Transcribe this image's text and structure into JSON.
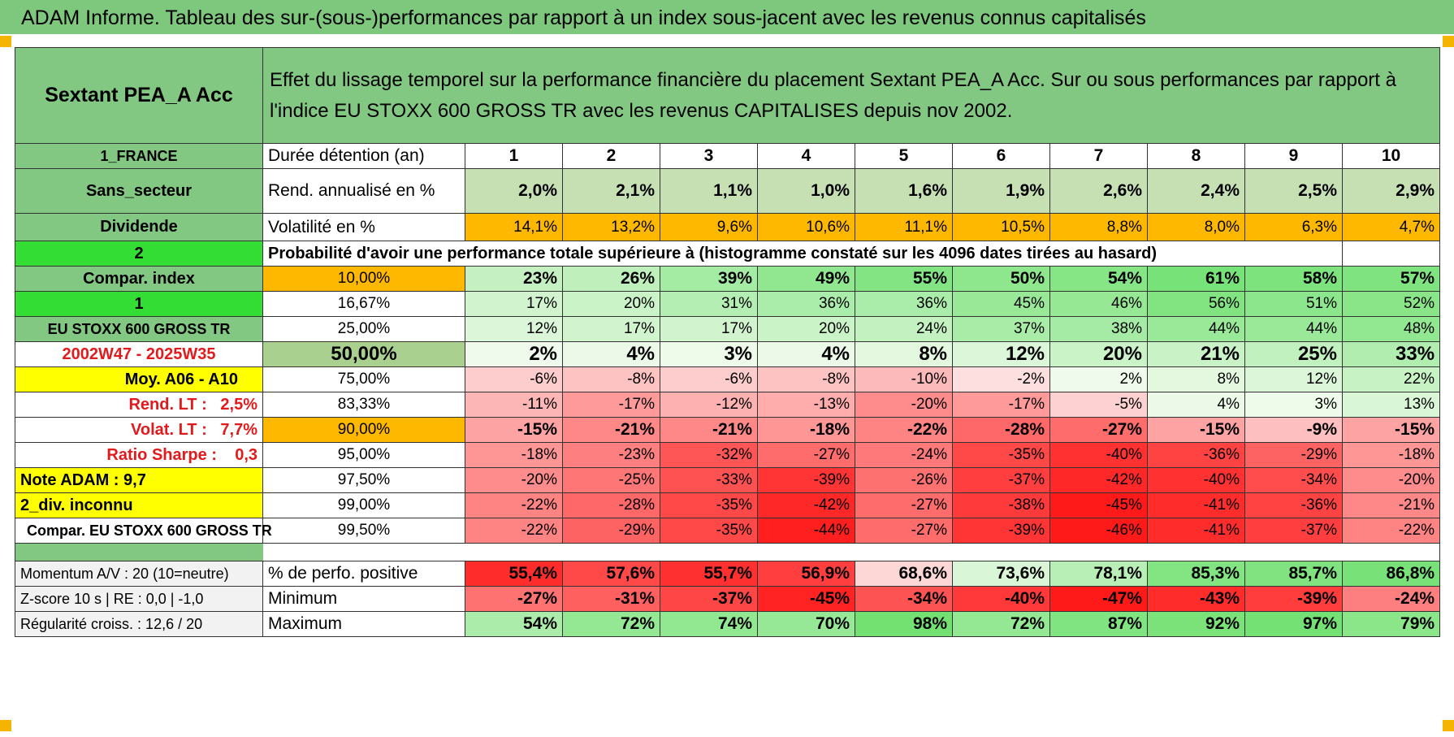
{
  "title": "ADAM Informe. Tableau des sur-(sous-)performances par rapport à un index sous-jacent avec les revenus connus capitalisés",
  "colors": {
    "header_green": "#7dc87d",
    "label_green": "#82c882",
    "bright_green": "#33dd33",
    "yellow": "#ffff00",
    "orange": "#ffb800",
    "light_green": "#c6e0b4",
    "red_text": "#e31a1c"
  },
  "fund": {
    "name": "Sextant PEA_A Acc",
    "description": "Effet du lissage temporel sur la performance financière du placement Sextant PEA_A Acc. Sur ou sous performances par rapport à l'indice EU STOXX 600 GROSS TR avec les revenus CAPITALISES depuis nov 2002."
  },
  "left": {
    "country": "1_FRANCE",
    "sector": "Sans_secteur",
    "dividend": "Dividende",
    "num2": "2",
    "compar_index": "Compar. index",
    "num1": "1",
    "index_name": "EU STOXX 600 GROSS TR",
    "period": "2002W47 - 2025W35",
    "moy": "Moy. A06 - A10",
    "rend_lt": "Rend. LT :   2,5%",
    "volat_lt": "Volat. LT :   7,7%",
    "sharpe": "Ratio Sharpe :    0,3",
    "note": "Note ADAM : 9,7",
    "div_inconnu": "2_div. inconnu",
    "compar_full": "Compar. EU STOXX 600 GROSS TR",
    "momentum": "Momentum A/V : 20 (10=neutre)",
    "zscore": "Z-score 10 s | RE : 0,0 | -1,0",
    "regularite": "Régularité croiss. : 12,6 / 20"
  },
  "labels": {
    "duree": "Durée détention (an)",
    "rend": "Rend. annualisé en %",
    "volat": "Volatilité en %",
    "proba": "Probabilité d'avoir une performance totale supérieure à (histogramme constaté sur les 4096 dates tirées au hasard)",
    "pct_pos": "% de perfo. positive",
    "minimum": "Minimum",
    "maximum": "Maximum"
  },
  "years": [
    "1",
    "2",
    "3",
    "4",
    "5",
    "6",
    "7",
    "8",
    "9",
    "10"
  ],
  "rend": [
    "2,0%",
    "2,1%",
    "1,1%",
    "1,0%",
    "1,6%",
    "1,9%",
    "2,6%",
    "2,4%",
    "2,5%",
    "2,9%"
  ],
  "volat": [
    "14,1%",
    "13,2%",
    "9,6%",
    "10,6%",
    "11,1%",
    "10,5%",
    "8,8%",
    "8,0%",
    "6,3%",
    "4,7%"
  ],
  "prob_rows": [
    {
      "thr": "10,00%",
      "vals": [
        "23%",
        "26%",
        "39%",
        "49%",
        "55%",
        "50%",
        "54%",
        "61%",
        "58%",
        "57%"
      ]
    },
    {
      "thr": "16,67%",
      "vals": [
        "17%",
        "20%",
        "31%",
        "36%",
        "36%",
        "45%",
        "46%",
        "56%",
        "51%",
        "52%"
      ]
    },
    {
      "thr": "25,00%",
      "vals": [
        "12%",
        "17%",
        "17%",
        "20%",
        "24%",
        "37%",
        "38%",
        "44%",
        "44%",
        "48%"
      ]
    },
    {
      "thr": "50,00%",
      "vals": [
        "2%",
        "4%",
        "3%",
        "4%",
        "8%",
        "12%",
        "20%",
        "21%",
        "25%",
        "33%"
      ]
    },
    {
      "thr": "75,00%",
      "vals": [
        "-6%",
        "-8%",
        "-6%",
        "-8%",
        "-10%",
        "-2%",
        "2%",
        "8%",
        "12%",
        "22%"
      ]
    },
    {
      "thr": "83,33%",
      "vals": [
        "-11%",
        "-17%",
        "-12%",
        "-13%",
        "-20%",
        "-17%",
        "-5%",
        "4%",
        "3%",
        "13%"
      ]
    },
    {
      "thr": "90,00%",
      "vals": [
        "-15%",
        "-21%",
        "-21%",
        "-18%",
        "-22%",
        "-28%",
        "-27%",
        "-15%",
        "-9%",
        "-15%"
      ]
    },
    {
      "thr": "95,00%",
      "vals": [
        "-18%",
        "-23%",
        "-32%",
        "-27%",
        "-24%",
        "-35%",
        "-40%",
        "-36%",
        "-29%",
        "-18%"
      ]
    },
    {
      "thr": "97,50%",
      "vals": [
        "-20%",
        "-25%",
        "-33%",
        "-39%",
        "-26%",
        "-37%",
        "-42%",
        "-40%",
        "-34%",
        "-20%"
      ]
    },
    {
      "thr": "99,00%",
      "vals": [
        "-22%",
        "-28%",
        "-35%",
        "-42%",
        "-27%",
        "-38%",
        "-45%",
        "-41%",
        "-36%",
        "-21%"
      ]
    },
    {
      "thr": "99,50%",
      "vals": [
        "-22%",
        "-29%",
        "-35%",
        "-44%",
        "-27%",
        "-39%",
        "-46%",
        "-41%",
        "-37%",
        "-22%"
      ]
    }
  ],
  "pct_pos": [
    "55,4%",
    "57,6%",
    "55,7%",
    "56,9%",
    "68,6%",
    "73,6%",
    "78,1%",
    "85,3%",
    "85,7%",
    "86,8%"
  ],
  "minimum": [
    "-27%",
    "-31%",
    "-37%",
    "-45%",
    "-34%",
    "-40%",
    "-47%",
    "-43%",
    "-39%",
    "-24%"
  ],
  "maximum": [
    "54%",
    "72%",
    "74%",
    "70%",
    "98%",
    "72%",
    "87%",
    "92%",
    "97%",
    "79%"
  ]
}
